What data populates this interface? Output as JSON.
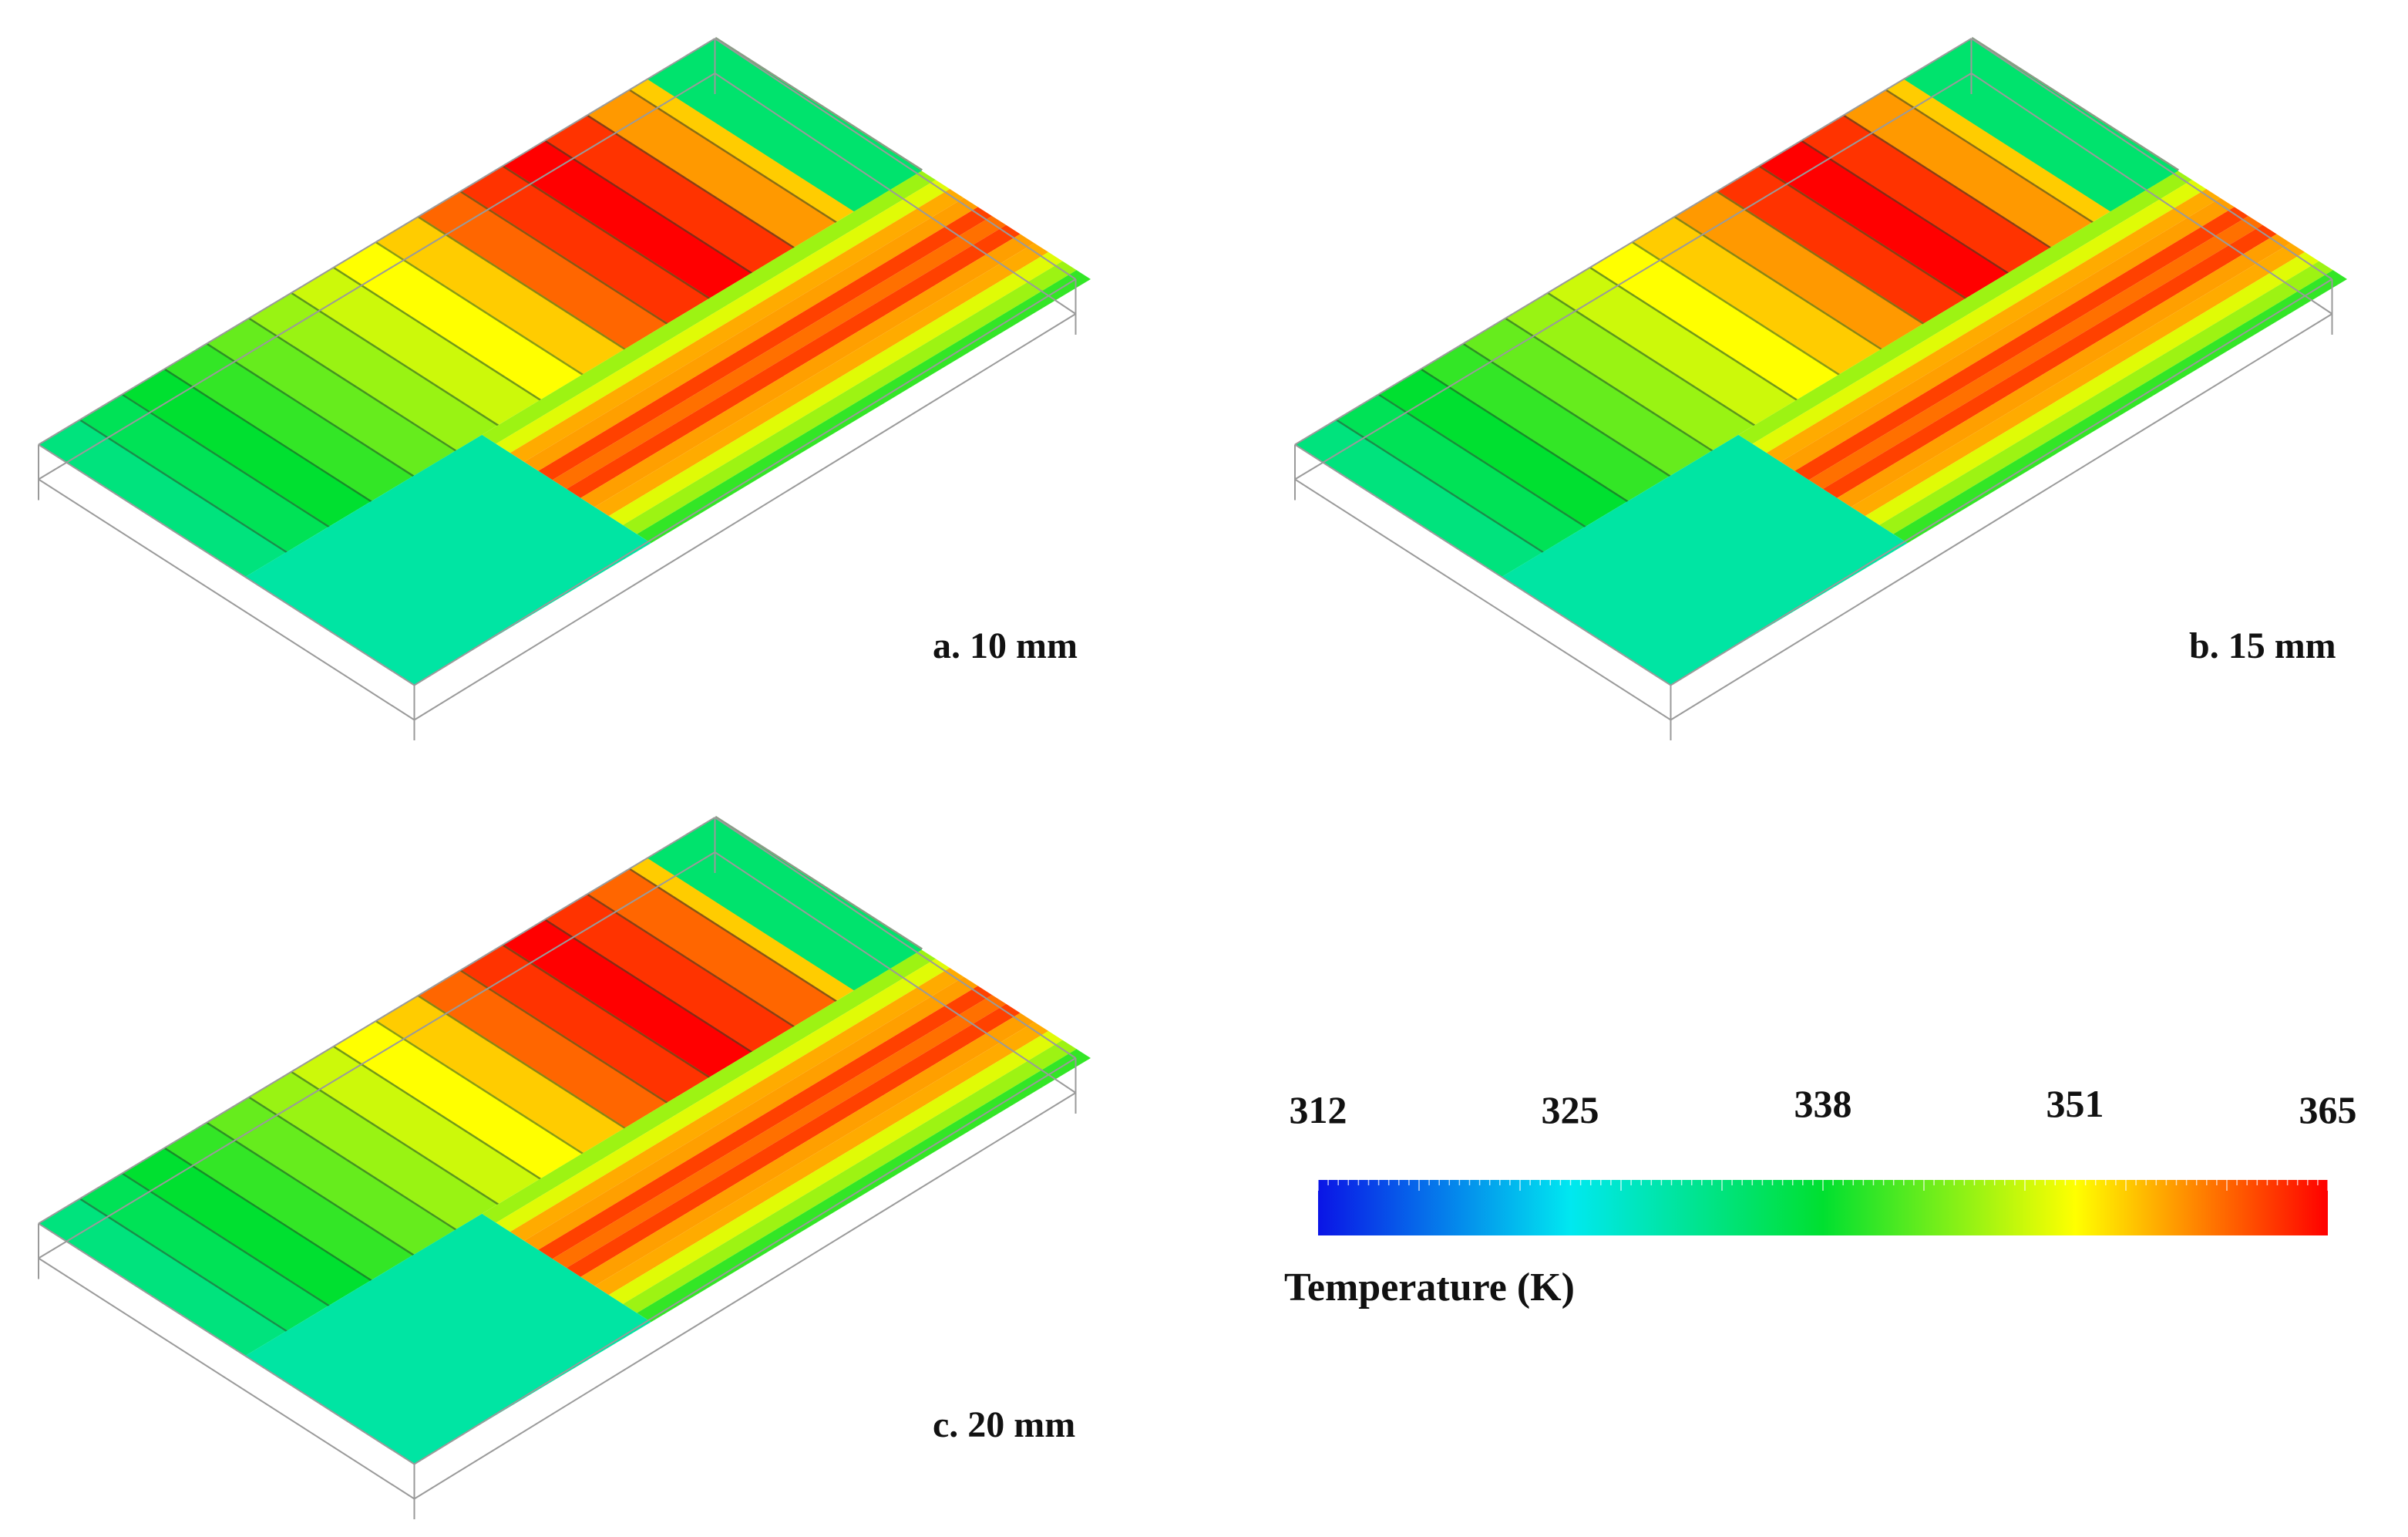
{
  "panels": [
    {
      "id": "a",
      "label": "a. 10 mm",
      "hot_stripes": [
        9,
        10,
        11,
        12
      ]
    },
    {
      "id": "b",
      "label": "b. 15 mm",
      "hot_stripes": [
        10,
        11,
        12
      ]
    },
    {
      "id": "c",
      "label": "c. 20 mm",
      "hot_stripes": [
        9,
        10,
        11,
        12,
        13
      ]
    }
  ],
  "legend": {
    "title": "Temperature (K)",
    "ticks": [
      "312",
      "325",
      "338",
      "351",
      "365"
    ],
    "min": 312,
    "max": 365,
    "colors": [
      "#0a14e6",
      "#00e8f0",
      "#00e030",
      "#ffff00",
      "#ff0000"
    ]
  }
}
